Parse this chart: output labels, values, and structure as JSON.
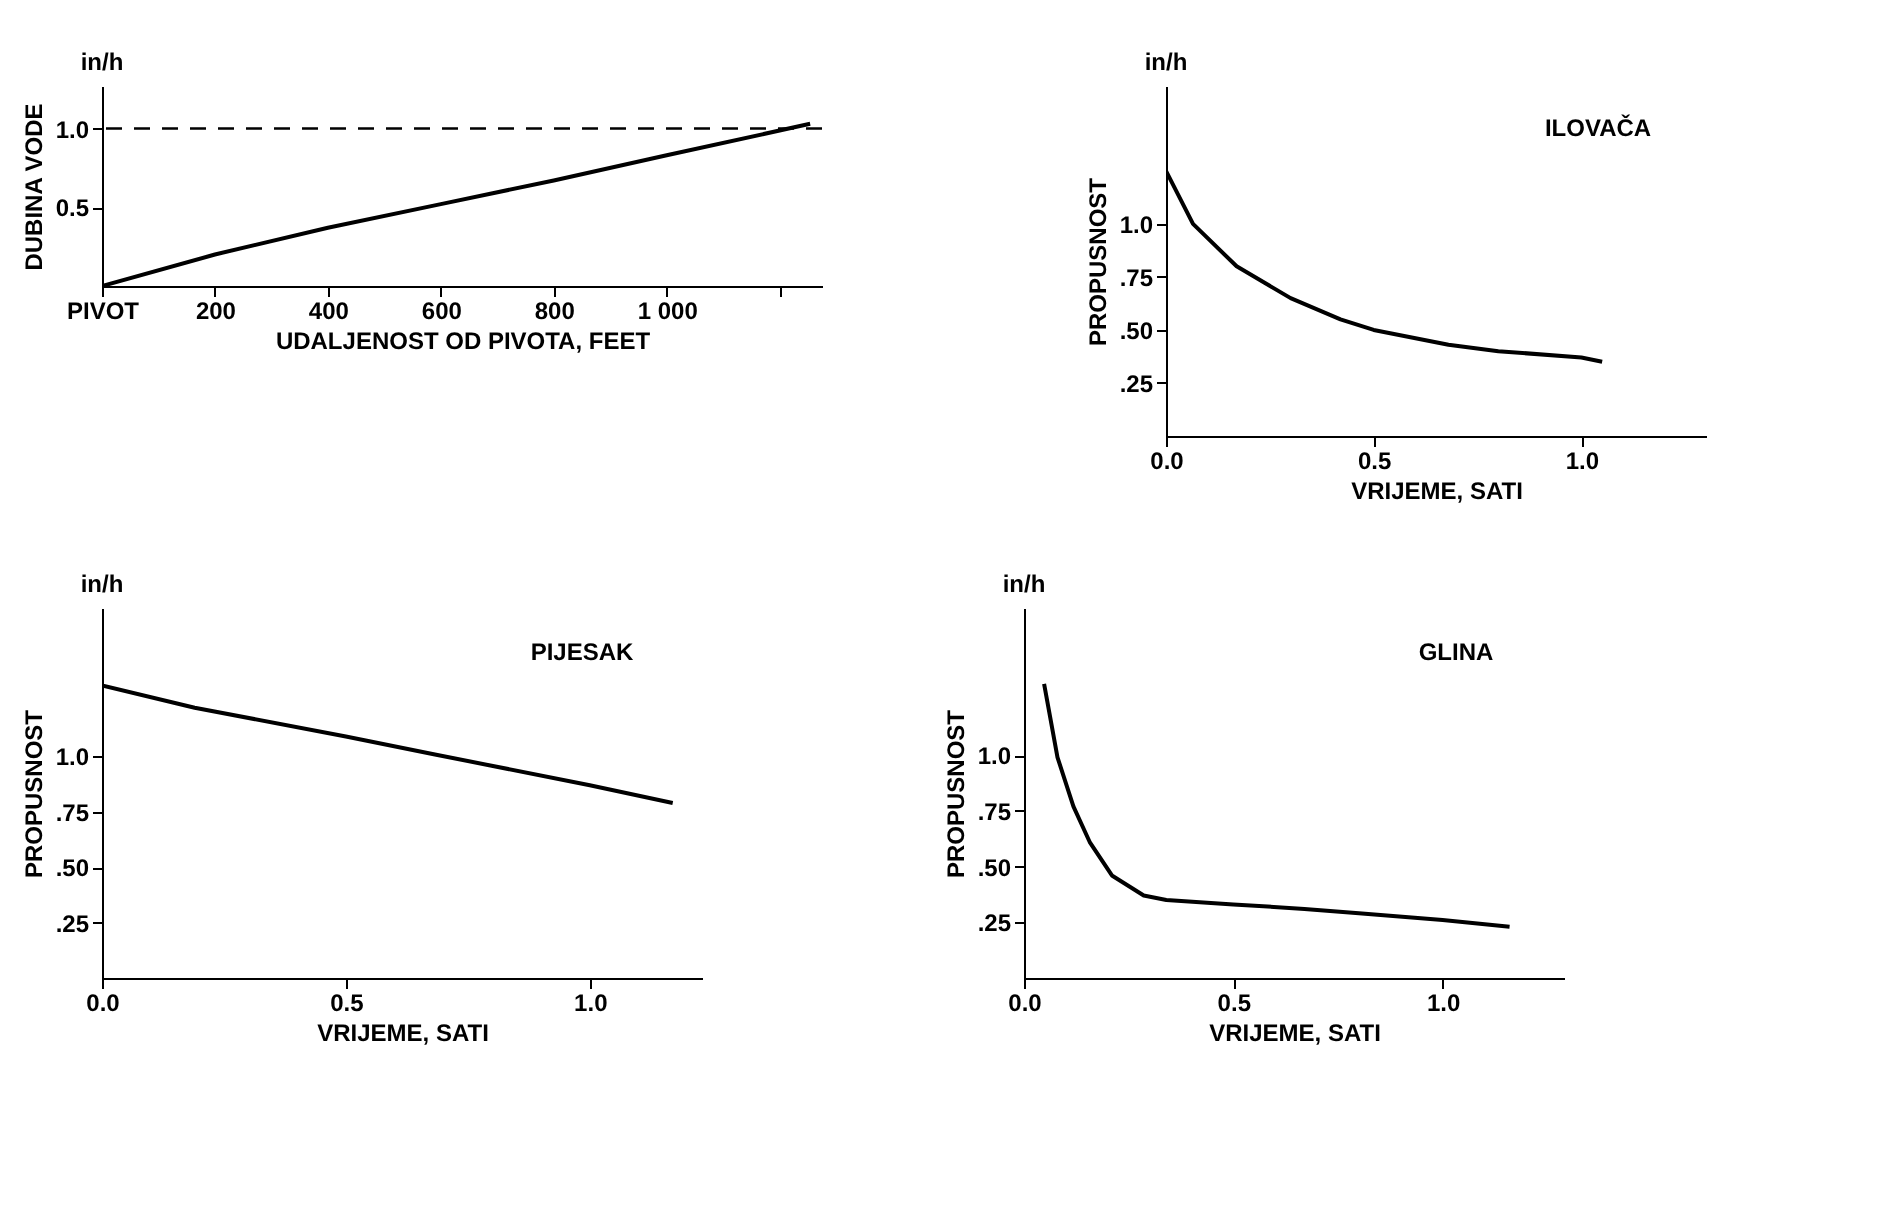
{
  "chart_data": [
    {
      "type": "line",
      "xlabel": "UDALJENOST OD PIVOTA, FEET",
      "ylabel": "DUBINA VODE",
      "annotations": [
        "in/h"
      ],
      "xlim": [
        0,
        1275
      ],
      "ylim": [
        0,
        1.27
      ],
      "xticks": [
        {
          "value": 0,
          "label": "PIVOT"
        },
        200,
        400,
        600,
        800,
        {
          "value": 1000,
          "label": "1 000"
        },
        {
          "value": 1200,
          "label": null
        }
      ],
      "yticks": [
        0.5,
        {
          "value": 1.0,
          "label": "1.0"
        }
      ],
      "ref_lines": [
        {
          "axis": "y",
          "value": 1.0,
          "line_style": "dashed"
        }
      ],
      "series": [
        {
          "color": "#000000",
          "x": [
            0,
            200,
            400,
            600,
            800,
            1000,
            1254
          ],
          "values": [
            0,
            0.2,
            0.37,
            0.52,
            0.67,
            0.83,
            1.03
          ]
        }
      ]
    },
    {
      "type": "line",
      "xlabel": "VRIJEME, SATI",
      "ylabel": "PROPUSNOST",
      "annotations": [
        "in/h",
        "ILOVAČA"
      ],
      "xlim": [
        0,
        1.3
      ],
      "ylim": [
        0,
        1.65
      ],
      "xticks": [
        {
          "value": 0,
          "label": "0.0"
        },
        0.5,
        {
          "value": 1.0,
          "label": "1.0"
        }
      ],
      "yticks": [
        {
          "value": 0.25,
          "label": ".25"
        },
        {
          "value": 0.5,
          "label": ".50"
        },
        {
          "value": 0.75,
          "label": ".75"
        },
        {
          "value": 1.0,
          "label": "1.0"
        }
      ],
      "series": [
        {
          "color": "#000000",
          "x": [
            0,
            0.065,
            0.17,
            0.3,
            0.42,
            0.5,
            0.68,
            0.8,
            1.0,
            1.05
          ],
          "values": [
            1.25,
            1.0,
            0.8,
            0.65,
            0.55,
            0.5,
            0.43,
            0.4,
            0.37,
            0.35
          ]
        }
      ]
    },
    {
      "type": "line",
      "xlabel": "VRIJEME, SATI",
      "ylabel": "PROPUSNOST",
      "annotations": [
        "in/h",
        "PIJESAK"
      ],
      "xlim": [
        0,
        1.23
      ],
      "ylim": [
        0,
        1.67
      ],
      "xticks": [
        {
          "value": 0,
          "label": "0.0"
        },
        0.5,
        {
          "value": 1.0,
          "label": "1.0"
        }
      ],
      "yticks": [
        {
          "value": 0.25,
          "label": ".25"
        },
        {
          "value": 0.5,
          "label": ".50"
        },
        {
          "value": 0.75,
          "label": ".75"
        },
        {
          "value": 1.0,
          "label": "1.0"
        }
      ],
      "series": [
        {
          "color": "#000000",
          "x": [
            0,
            0.19,
            0.5,
            0.68,
            1.0,
            1.17
          ],
          "values": [
            1.32,
            1.22,
            1.09,
            1.01,
            0.87,
            0.79
          ]
        }
      ]
    },
    {
      "type": "line",
      "xlabel": "VRIJEME, SATI",
      "ylabel": "PROPUSNOST",
      "annotations": [
        "in/h",
        "GLINA"
      ],
      "xlim": [
        0,
        1.29
      ],
      "ylim": [
        0,
        1.66
      ],
      "xticks": [
        {
          "value": 0,
          "label": "0.0"
        },
        0.5,
        {
          "value": 1.0,
          "label": "1.0"
        }
      ],
      "yticks": [
        {
          "value": 0.25,
          "label": ".25"
        },
        {
          "value": 0.5,
          "label": ".50"
        },
        {
          "value": 0.75,
          "label": ".75"
        },
        {
          "value": 1.0,
          "label": "1.0"
        }
      ],
      "series": [
        {
          "color": "#000000",
          "x": [
            0.048,
            0.08,
            0.118,
            0.157,
            0.21,
            0.286,
            0.34,
            0.5,
            0.67,
            0.8,
            1.0,
            1.16
          ],
          "values": [
            1.32,
            0.99,
            0.77,
            0.61,
            0.46,
            0.37,
            0.35,
            0.33,
            0.31,
            0.29,
            0.26,
            0.23
          ]
        }
      ]
    }
  ]
}
